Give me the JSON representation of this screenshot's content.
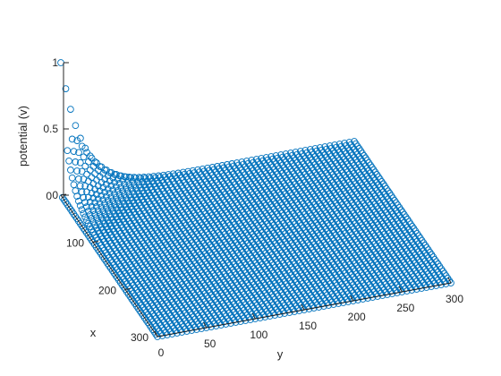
{
  "chart_data": {
    "type": "scatter",
    "subtype": "3d-scatter",
    "marker": "circle",
    "marker_color": "#0072BD",
    "xlabel": "x",
    "ylabel": "y",
    "zlabel": "potential (v)",
    "xlim": [
      0,
      300
    ],
    "ylim": [
      0,
      300
    ],
    "zlim": [
      0,
      1
    ],
    "xticks": [
      "0",
      "100",
      "200",
      "300"
    ],
    "yticks": [
      "0",
      "50",
      "100",
      "150",
      "200",
      "250",
      "300"
    ],
    "zticks": [
      "0",
      "0.5",
      "1"
    ],
    "grid": false,
    "legend": "none",
    "surface": {
      "x_range": [
        0,
        300
      ],
      "y_range": [
        0,
        300
      ],
      "grid_step": 5,
      "boundary": [
        {
          "edge": "x = 0",
          "potential": 1
        },
        {
          "edge": "x = 300",
          "potential": 0
        },
        {
          "edge": "y = 0",
          "potential": 0
        },
        {
          "edge": "y = 300",
          "potential": 0
        }
      ],
      "peak_value": 1,
      "peak_location": {
        "x": 0,
        "y": 0
      },
      "decay": "potential falls off from the x = 0 edge toward zero within roughly 60 units in x and y"
    }
  }
}
